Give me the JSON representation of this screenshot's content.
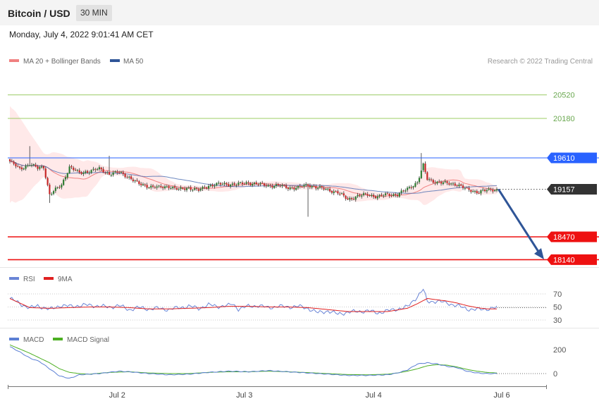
{
  "header": {
    "title": "Bitcoin / USD",
    "timeframe": "30 MIN"
  },
  "timestamp": "Monday, July 4, 2022 9:01:41 AM CET",
  "credit": "Research © 2022 Trading Central",
  "colors": {
    "bb_fill": "#ffe3e3",
    "ma20": "#f08080",
    "ma50": "#4a6bb0",
    "bull": "#2e7d32",
    "bear": "#c62828",
    "green_line": "#9ccc65",
    "resistance": "#2962ff",
    "support": "#ee1111",
    "arrow": "#2f5597",
    "price_tag": "#333333",
    "rsi": "#6a85d6",
    "nine_ma": "#e02020",
    "macd": "#5b7fd4",
    "macd_signal": "#4caf22"
  },
  "chart_data": [
    {
      "type": "candlestick",
      "title": "Bitcoin / USD",
      "legend": [
        "MA 20 + Bollinger Bands",
        "MA 50"
      ],
      "x_ticks": [
        "Jul 2",
        "Jul 3",
        "Jul 4",
        "Jul 6"
      ],
      "ylim": [
        17900,
        20950
      ],
      "levels": [
        {
          "value": 20520,
          "label": "20520",
          "kind": "target"
        },
        {
          "value": 20180,
          "label": "20180",
          "kind": "target"
        },
        {
          "value": 19610,
          "label": "19610",
          "kind": "resistance"
        },
        {
          "value": 19157,
          "label": "19157",
          "kind": "last"
        },
        {
          "value": 18470,
          "label": "18470",
          "kind": "support"
        },
        {
          "value": 18140,
          "label": "18140",
          "kind": "support"
        }
      ],
      "close_anchors": [
        [
          0,
          19560
        ],
        [
          5,
          19450
        ],
        [
          10,
          19520
        ],
        [
          14,
          19460
        ],
        [
          17,
          19480
        ],
        [
          20,
          19080
        ],
        [
          23,
          19150
        ],
        [
          26,
          19220
        ],
        [
          30,
          19480
        ],
        [
          35,
          19390
        ],
        [
          40,
          19420
        ],
        [
          45,
          19450
        ],
        [
          50,
          19380
        ],
        [
          55,
          19400
        ],
        [
          60,
          19330
        ],
        [
          65,
          19230
        ],
        [
          70,
          19200
        ],
        [
          75,
          19180
        ],
        [
          80,
          19200
        ],
        [
          85,
          19150
        ],
        [
          90,
          19180
        ],
        [
          95,
          19140
        ],
        [
          100,
          19210
        ],
        [
          105,
          19230
        ],
        [
          110,
          19230
        ],
        [
          115,
          19230
        ],
        [
          120,
          19250
        ],
        [
          125,
          19230
        ],
        [
          130,
          19210
        ],
        [
          135,
          19210
        ],
        [
          140,
          19180
        ],
        [
          145,
          19180
        ],
        [
          150,
          19220
        ],
        [
          155,
          19180
        ],
        [
          160,
          19150
        ],
        [
          165,
          19110
        ],
        [
          170,
          19010
        ],
        [
          175,
          19060
        ],
        [
          180,
          19080
        ],
        [
          185,
          19050
        ],
        [
          190,
          19080
        ],
        [
          195,
          19080
        ],
        [
          200,
          19160
        ],
        [
          205,
          19260
        ],
        [
          208,
          19500
        ],
        [
          210,
          19300
        ],
        [
          215,
          19260
        ],
        [
          220,
          19240
        ],
        [
          225,
          19230
        ],
        [
          230,
          19150
        ],
        [
          235,
          19120
        ],
        [
          240,
          19140
        ],
        [
          245,
          19157
        ]
      ]
    },
    {
      "type": "line",
      "legend": [
        "RSI",
        "9MA"
      ],
      "ylim": [
        20,
        80
      ],
      "levels": [
        70,
        50,
        30
      ],
      "y_ticks": [
        "70",
        "50",
        "30"
      ],
      "rsi_anchors": [
        [
          0,
          63
        ],
        [
          10,
          48
        ],
        [
          14,
          52
        ],
        [
          20,
          46
        ],
        [
          25,
          52
        ],
        [
          30,
          51
        ],
        [
          40,
          53
        ],
        [
          45,
          51
        ],
        [
          50,
          50
        ],
        [
          55,
          52
        ],
        [
          60,
          46
        ],
        [
          65,
          49
        ],
        [
          70,
          47
        ],
        [
          75,
          48
        ],
        [
          80,
          46
        ],
        [
          85,
          49
        ],
        [
          90,
          51
        ],
        [
          95,
          48
        ],
        [
          100,
          53
        ],
        [
          105,
          51
        ],
        [
          110,
          52
        ],
        [
          112,
          55
        ],
        [
          115,
          47
        ],
        [
          120,
          51
        ],
        [
          125,
          52
        ],
        [
          130,
          49
        ],
        [
          135,
          51
        ],
        [
          140,
          50
        ],
        [
          145,
          51
        ],
        [
          150,
          48
        ],
        [
          155,
          41
        ],
        [
          160,
          44
        ],
        [
          165,
          39
        ],
        [
          170,
          42
        ],
        [
          175,
          43
        ],
        [
          180,
          44
        ],
        [
          185,
          41
        ],
        [
          190,
          44
        ],
        [
          195,
          47
        ],
        [
          200,
          50
        ],
        [
          205,
          66
        ],
        [
          208,
          77
        ],
        [
          210,
          58
        ],
        [
          215,
          59
        ],
        [
          220,
          56
        ],
        [
          225,
          52
        ],
        [
          230,
          47
        ],
        [
          235,
          46
        ],
        [
          240,
          47
        ],
        [
          245,
          49
        ]
      ],
      "ma_anchors": [
        [
          0,
          63
        ],
        [
          10,
          49
        ],
        [
          20,
          48
        ],
        [
          30,
          49
        ],
        [
          40,
          50
        ],
        [
          50,
          50
        ],
        [
          60,
          49
        ],
        [
          70,
          47
        ],
        [
          80,
          47
        ],
        [
          90,
          48
        ],
        [
          100,
          49
        ],
        [
          110,
          51
        ],
        [
          120,
          51
        ],
        [
          130,
          50
        ],
        [
          140,
          50
        ],
        [
          150,
          49
        ],
        [
          160,
          46
        ],
        [
          170,
          43
        ],
        [
          180,
          43
        ],
        [
          190,
          43
        ],
        [
          200,
          48
        ],
        [
          205,
          55
        ],
        [
          210,
          63
        ],
        [
          215,
          61
        ],
        [
          220,
          59
        ],
        [
          225,
          56
        ],
        [
          230,
          52
        ],
        [
          235,
          49
        ],
        [
          240,
          47
        ],
        [
          245,
          47
        ]
      ]
    },
    {
      "type": "line",
      "legend": [
        "MACD",
        "MACD Signal"
      ],
      "ylim": [
        -60,
        280
      ],
      "levels": [
        0
      ],
      "y_ticks": [
        "200",
        "0"
      ],
      "macd_anchors": [
        [
          0,
          225
        ],
        [
          5,
          180
        ],
        [
          10,
          130
        ],
        [
          15,
          100
        ],
        [
          20,
          40
        ],
        [
          25,
          -20
        ],
        [
          30,
          -40
        ],
        [
          35,
          -10
        ],
        [
          40,
          -5
        ],
        [
          45,
          0
        ],
        [
          50,
          10
        ],
        [
          55,
          20
        ],
        [
          60,
          15
        ],
        [
          70,
          0
        ],
        [
          80,
          -10
        ],
        [
          90,
          -5
        ],
        [
          100,
          10
        ],
        [
          110,
          20
        ],
        [
          120,
          15
        ],
        [
          130,
          25
        ],
        [
          140,
          15
        ],
        [
          150,
          5
        ],
        [
          160,
          -5
        ],
        [
          170,
          -15
        ],
        [
          180,
          -15
        ],
        [
          190,
          -10
        ],
        [
          195,
          5
        ],
        [
          200,
          30
        ],
        [
          205,
          80
        ],
        [
          210,
          90
        ],
        [
          215,
          80
        ],
        [
          220,
          60
        ],
        [
          225,
          50
        ],
        [
          230,
          20
        ],
        [
          235,
          5
        ],
        [
          240,
          0
        ],
        [
          245,
          0
        ]
      ],
      "signal_anchors": [
        [
          0,
          240
        ],
        [
          10,
          170
        ],
        [
          20,
          90
        ],
        [
          25,
          40
        ],
        [
          30,
          10
        ],
        [
          35,
          0
        ],
        [
          40,
          -5
        ],
        [
          50,
          10
        ],
        [
          60,
          15
        ],
        [
          70,
          5
        ],
        [
          80,
          0
        ],
        [
          90,
          0
        ],
        [
          100,
          10
        ],
        [
          110,
          15
        ],
        [
          120,
          15
        ],
        [
          130,
          20
        ],
        [
          140,
          15
        ],
        [
          150,
          8
        ],
        [
          160,
          0
        ],
        [
          170,
          -8
        ],
        [
          180,
          -10
        ],
        [
          190,
          -5
        ],
        [
          195,
          5
        ],
        [
          200,
          20
        ],
        [
          205,
          40
        ],
        [
          210,
          65
        ],
        [
          215,
          75
        ],
        [
          220,
          70
        ],
        [
          225,
          55
        ],
        [
          230,
          35
        ],
        [
          235,
          20
        ],
        [
          240,
          10
        ],
        [
          245,
          5
        ]
      ]
    }
  ]
}
